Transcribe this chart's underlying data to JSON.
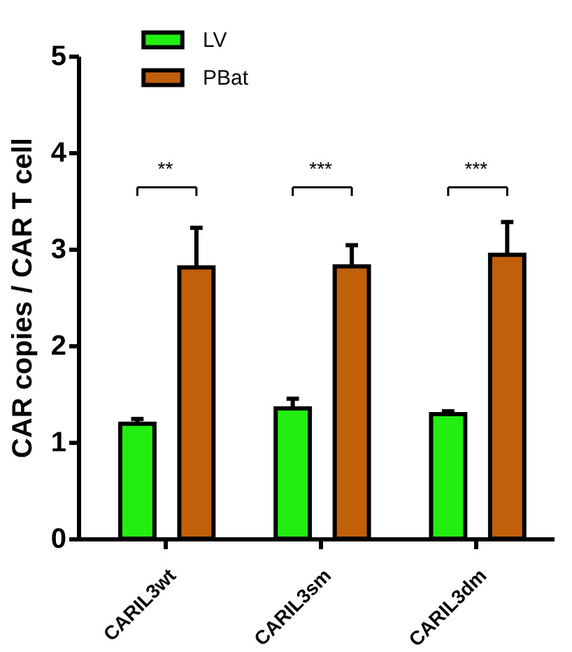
{
  "chart_data": {
    "type": "bar",
    "ylabel": "CAR copies / CAR T cell",
    "categories": [
      "CARIL3wt",
      "CARIL3sm",
      "CARIL3dm"
    ],
    "series": [
      {
        "name": "LV",
        "color": "#22ee11",
        "values": [
          1.19,
          1.35,
          1.29
        ],
        "errors": [
          [
            1.19,
            1.24
          ],
          [
            1.35,
            1.45
          ],
          [
            1.29,
            1.32
          ]
        ]
      },
      {
        "name": "PBat",
        "color": "#c0600a",
        "values": [
          2.81,
          2.82,
          2.94
        ],
        "errors": [
          [
            2.81,
            3.22
          ],
          [
            2.82,
            3.04
          ],
          [
            2.94,
            3.28
          ]
        ]
      }
    ],
    "annotations": [
      "**",
      "***",
      "***"
    ],
    "ylim": [
      0,
      5
    ],
    "yticks": [
      0,
      1,
      2,
      3,
      4,
      5
    ],
    "grid": false,
    "legend": "top left"
  }
}
